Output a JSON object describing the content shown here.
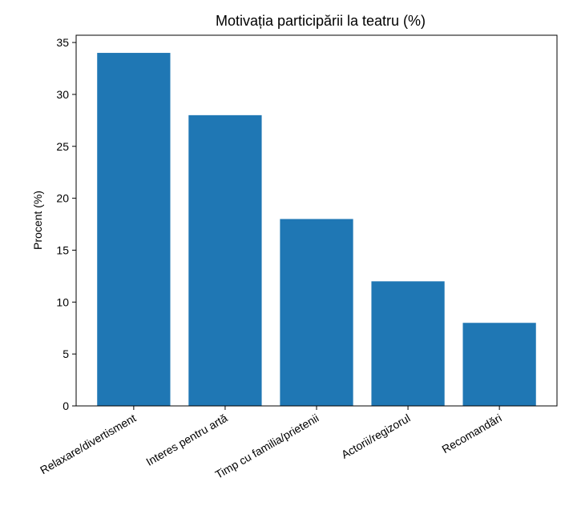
{
  "chart_data": {
    "type": "bar",
    "title": "Motivația participării la teatru (%)",
    "ylabel": "Procent (%)",
    "categories": [
      "Relaxare/divertisment",
      "Interes pentru artă",
      "Timp cu familia/prietenii",
      "Actorii/regizorul",
      "Recomandări"
    ],
    "values": [
      34,
      28,
      18,
      12,
      8
    ],
    "color": "#1f77b4",
    "ylim": [
      0,
      35.7
    ],
    "yticks": [
      0,
      5,
      10,
      15,
      20,
      25,
      30,
      35
    ]
  }
}
